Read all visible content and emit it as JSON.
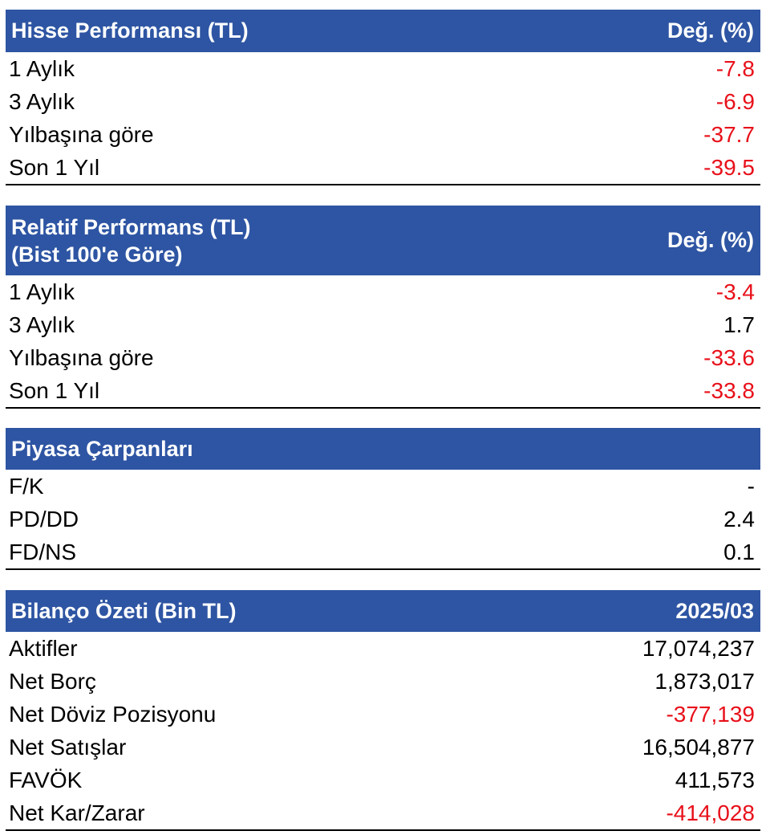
{
  "hisse": {
    "title": "Hisse Performansı (TL)",
    "col": "Değ. (%)",
    "rows": [
      {
        "label": "1 Aylık",
        "value": "-7.8",
        "color": "#e8101a"
      },
      {
        "label": "3 Aylık",
        "value": "-6.9",
        "color": "#e8101a"
      },
      {
        "label": "Yılbaşına göre",
        "value": "-37.7",
        "color": "#e8101a"
      },
      {
        "label": "Son 1 Yıl",
        "value": "-39.5",
        "color": "#e8101a"
      }
    ]
  },
  "relatif": {
    "title_line1": "Relatif Performans (TL)",
    "title_line2": "(Bist 100'e Göre)",
    "col": "Değ. (%)",
    "rows": [
      {
        "label": "1 Aylık",
        "value": "-3.4",
        "color": "#e8101a"
      },
      {
        "label": "3 Aylık",
        "value": "1.7",
        "color": "#000000"
      },
      {
        "label": "Yılbaşına göre",
        "value": "-33.6",
        "color": "#e8101a"
      },
      {
        "label": "Son 1 Yıl",
        "value": "-33.8",
        "color": "#e8101a"
      }
    ]
  },
  "carpanlar": {
    "title": "Piyasa Çarpanları",
    "rows": [
      {
        "label": "F/K",
        "value": "-",
        "color": "#000000"
      },
      {
        "label": "PD/DD",
        "value": "2.4",
        "color": "#000000"
      },
      {
        "label": "FD/NS",
        "value": "0.1",
        "color": "#000000"
      }
    ]
  },
  "bilanco": {
    "title": "Bilanço Özeti (Bin TL)",
    "col": "2025/03",
    "rows": [
      {
        "label": "Aktifler",
        "value": "17,074,237",
        "color": "#000000"
      },
      {
        "label": "Net Borç",
        "value": "1,873,017",
        "color": "#000000"
      },
      {
        "label": "Net Döviz Pozisyonu",
        "value": "-377,139",
        "color": "#e8101a"
      },
      {
        "label": "Net Satışlar",
        "value": "16,504,877",
        "color": "#000000"
      },
      {
        "label": "FAVÖK",
        "value": "411,573",
        "color": "#000000"
      },
      {
        "label": "Net Kar/Zarar",
        "value": "-414,028",
        "color": "#e8101a"
      }
    ]
  },
  "theme": {
    "header_bg": "#2e55a3",
    "negative": "#e8101a"
  }
}
